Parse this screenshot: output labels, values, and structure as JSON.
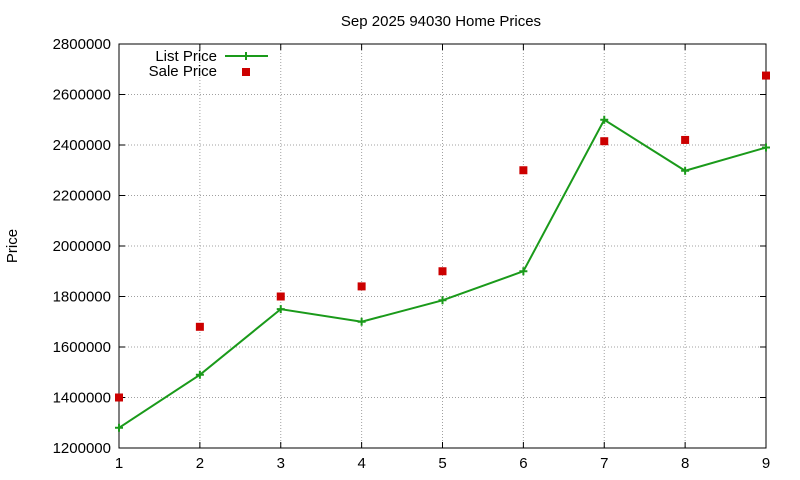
{
  "chart_data": {
    "type": "line",
    "title": "Sep 2025 94030 Home Prices",
    "xlabel": "",
    "ylabel": "Price",
    "xlim": [
      1,
      9
    ],
    "ylim": [
      1200000,
      2800000
    ],
    "x_ticks": [
      "1",
      "2",
      "3",
      "4",
      "5",
      "6",
      "7",
      "8",
      "9"
    ],
    "y_ticks": [
      "1200000",
      "1400000",
      "1600000",
      "1800000",
      "2000000",
      "2200000",
      "2400000",
      "2600000",
      "2800000"
    ],
    "grid": true,
    "legend_position": "top-left",
    "series": [
      {
        "name": "List Price",
        "style": "line-with-plus-markers",
        "color": "#1a9a1a",
        "x": [
          1,
          2,
          3,
          4,
          5,
          6,
          7,
          8,
          9
        ],
        "values": [
          1280000,
          1490000,
          1750000,
          1700000,
          1785000,
          1900000,
          2500000,
          2298000,
          2390000
        ]
      },
      {
        "name": "Sale Price",
        "style": "square-points",
        "color": "#cc0000",
        "x": [
          1,
          2,
          3,
          4,
          5,
          6,
          7,
          8,
          9
        ],
        "values": [
          1400000,
          1680000,
          1800000,
          1840000,
          1900000,
          2300000,
          2415000,
          2420000,
          2675000
        ]
      }
    ]
  }
}
